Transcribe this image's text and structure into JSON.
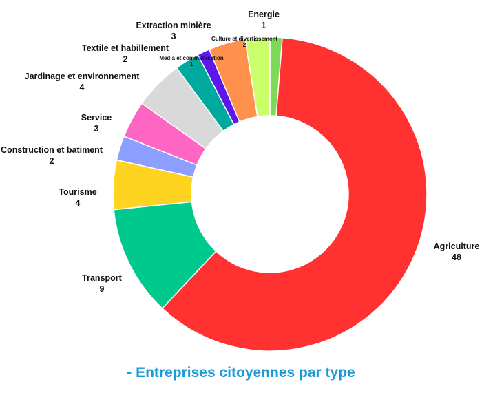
{
  "chart_data": {
    "type": "pie",
    "donut": true,
    "title": "- Entreprises citoyennes par type",
    "categories": [
      "Energie",
      "Agriculture",
      "Transport",
      "Tourisme",
      "Construction et batiment",
      "Service",
      "Jardinage et environnement",
      "Textile et habillement",
      "Media et communication",
      "Extraction minière",
      "Culture et divertissement"
    ],
    "values": [
      1,
      48,
      9,
      4,
      2,
      3,
      4,
      2,
      1,
      3,
      2
    ],
    "colors": [
      "#7ed957",
      "#ff3131",
      "#00c98d",
      "#ffd420",
      "#8c9eff",
      "#ff66c4",
      "#d9d9d9",
      "#00a99d",
      "#5e17eb",
      "#ff914d",
      "#c9ff6b"
    ],
    "title_color": "#1a9ad6",
    "legend": "none"
  }
}
